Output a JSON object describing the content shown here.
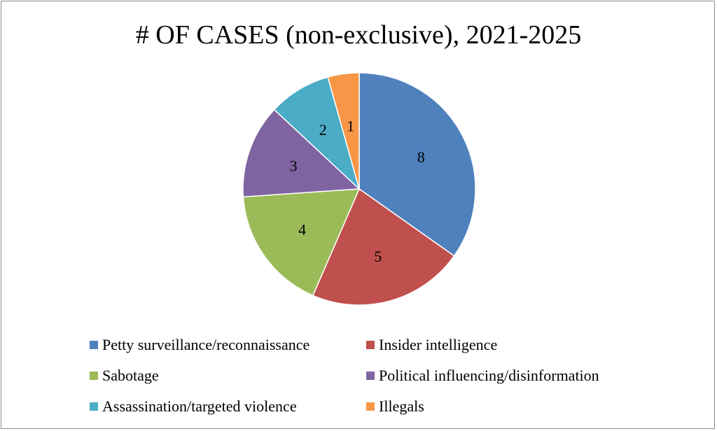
{
  "chart_data": {
    "type": "pie",
    "title": "# OF CASES (non-exclusive), 2021-2025",
    "categories": [
      "Petty surveillance/reconnaissance",
      "Insider intelligence",
      "Sabotage",
      "Political influencing/disinformation",
      "Assassination/targeted violence",
      "Illegals"
    ],
    "values": [
      8,
      5,
      4,
      3,
      2,
      1
    ],
    "colors": [
      "#4f81bd",
      "#c0504d",
      "#9bbb59",
      "#8064a2",
      "#4bacc6",
      "#f79646"
    ],
    "data_labels": [
      "8",
      "5",
      "4",
      "3",
      "2",
      "1"
    ],
    "legend_position": "bottom",
    "start_angle": "12 o'clock",
    "direction": "clockwise"
  }
}
